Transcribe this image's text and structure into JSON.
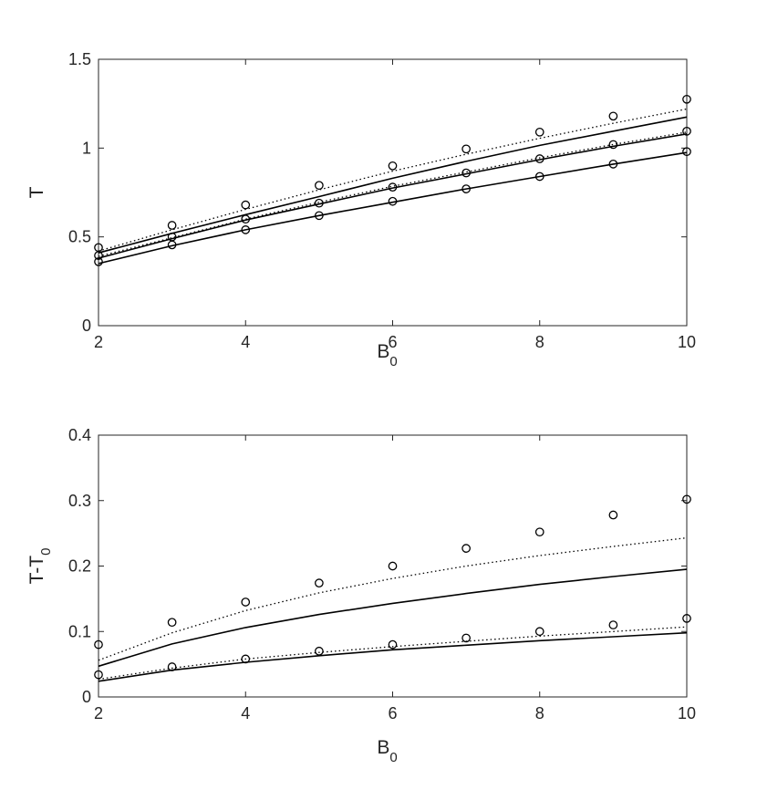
{
  "chart_data": [
    {
      "type": "line",
      "ylabel": "T",
      "xlabel": {
        "main": "B",
        "sub": "0"
      },
      "xlim": [
        2,
        10
      ],
      "ylim": [
        0,
        1.5
      ],
      "xticks": [
        "2",
        "4",
        "6",
        "8",
        "10"
      ],
      "yticks": [
        "0",
        "0.5",
        "1",
        "1.5"
      ],
      "x": [
        2,
        3,
        4,
        5,
        6,
        7,
        8,
        9,
        10
      ],
      "series": [
        {
          "style": "solid",
          "values": [
            0.41,
            0.52,
            0.625,
            0.727,
            0.83,
            0.925,
            1.015,
            1.095,
            1.175
          ]
        },
        {
          "style": "dotted",
          "values": [
            0.42,
            0.54,
            0.655,
            0.765,
            0.87,
            0.965,
            1.055,
            1.14,
            1.22
          ]
        },
        {
          "style": "solid",
          "values": [
            0.38,
            0.49,
            0.595,
            0.685,
            0.775,
            0.855,
            0.935,
            1.01,
            1.08
          ]
        },
        {
          "style": "dotted",
          "values": [
            0.39,
            0.495,
            0.6,
            0.695,
            0.785,
            0.865,
            0.945,
            1.02,
            1.09
          ]
        },
        {
          "style": "solid",
          "values": [
            0.35,
            0.45,
            0.54,
            0.62,
            0.695,
            0.77,
            0.84,
            0.91,
            0.975
          ]
        },
        {
          "style": "markers",
          "values": [
            0.44,
            0.565,
            0.68,
            0.79,
            0.9,
            0.995,
            1.09,
            1.18,
            1.275
          ]
        },
        {
          "style": "markers",
          "values": [
            0.395,
            0.5,
            0.6,
            0.69,
            0.78,
            0.86,
            0.94,
            1.02,
            1.095
          ]
        },
        {
          "style": "markers",
          "values": [
            0.36,
            0.455,
            0.54,
            0.62,
            0.7,
            0.77,
            0.84,
            0.91,
            0.98
          ]
        }
      ]
    },
    {
      "type": "line",
      "ylabel": {
        "main": "T-T",
        "sub": "0"
      },
      "xlabel": {
        "main": "B",
        "sub": "0"
      },
      "xlim": [
        2,
        10
      ],
      "ylim": [
        0,
        0.4
      ],
      "xticks": [
        "2",
        "4",
        "6",
        "8",
        "10"
      ],
      "yticks": [
        "0",
        "0.1",
        "0.2",
        "0.3",
        "0.4"
      ],
      "x": [
        2,
        3,
        4,
        5,
        6,
        7,
        8,
        9,
        10
      ],
      "series": [
        {
          "style": "dotted",
          "values": [
            0.056,
            0.098,
            0.132,
            0.159,
            0.181,
            0.2,
            0.216,
            0.23,
            0.243
          ]
        },
        {
          "style": "solid",
          "values": [
            0.047,
            0.081,
            0.106,
            0.126,
            0.143,
            0.158,
            0.172,
            0.184,
            0.195
          ]
        },
        {
          "style": "dotted",
          "values": [
            0.027,
            0.044,
            0.058,
            0.068,
            0.077,
            0.085,
            0.093,
            0.1,
            0.107
          ]
        },
        {
          "style": "solid",
          "values": [
            0.024,
            0.041,
            0.053,
            0.063,
            0.072,
            0.079,
            0.086,
            0.092,
            0.098
          ]
        },
        {
          "style": "markers",
          "values": [
            0.08,
            0.114,
            0.145,
            0.174,
            0.2,
            0.227,
            0.252,
            0.278,
            0.302
          ]
        },
        {
          "style": "markers",
          "values": [
            0.034,
            0.046,
            0.058,
            0.07,
            0.08,
            0.09,
            0.1,
            0.11,
            0.12
          ]
        }
      ]
    }
  ]
}
